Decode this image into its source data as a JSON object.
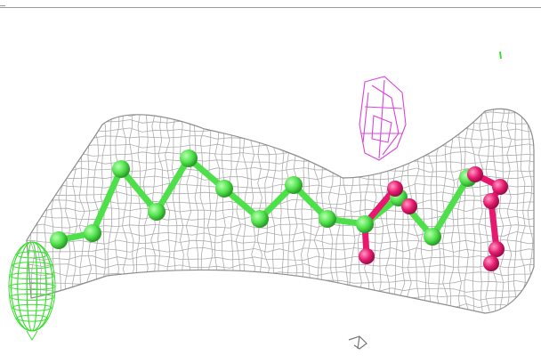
{
  "scene": {
    "background": "#ffffff",
    "colors": {
      "density_mesh": "#9e9e9e",
      "carbon_atoms": "#4ee04a",
      "carbon_mesh": "#39e02e",
      "oxygen_atoms": "#e6196e",
      "difference_density": "#d845d8"
    },
    "icons": [
      "density-mesh",
      "ligand-model",
      "head-group-mesh",
      "difference-density-blob"
    ]
  }
}
